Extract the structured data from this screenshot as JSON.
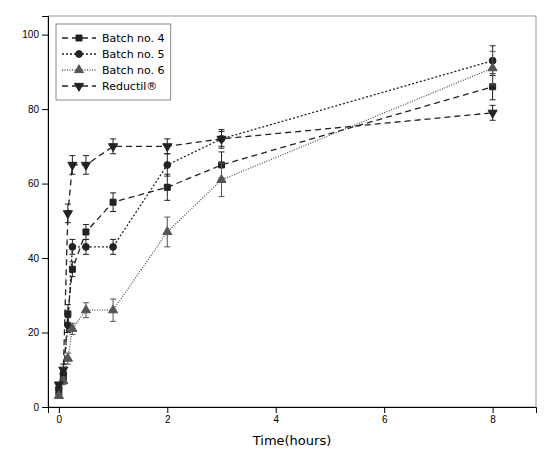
{
  "chart_data": {
    "type": "line",
    "xlabel": "Time(hours)",
    "x": [
      0.0,
      0.083,
      0.167,
      0.25,
      0.5,
      1.0,
      2.0,
      3.0,
      8.0
    ],
    "series": [
      {
        "name": "Batch no. 4",
        "color": "#222222",
        "marker": "square",
        "line_style": "dashed",
        "values": [
          4,
          8,
          25,
          37,
          47,
          55,
          59,
          65,
          86
        ],
        "errors": [
          0.5,
          1.0,
          2.5,
          2.0,
          2.0,
          2.5,
          3.5,
          3.5,
          3.5
        ]
      },
      {
        "name": "Batch no. 5",
        "color": "#222222",
        "marker": "circle",
        "line_style": "dotted",
        "values": [
          5,
          9,
          22,
          43,
          43,
          43,
          65,
          72,
          93
        ],
        "errors": [
          0.5,
          1.0,
          2.0,
          2.0,
          2.0,
          2.0,
          3.0,
          2.5,
          4.0
        ]
      },
      {
        "name": "Batch no. 6",
        "color": "#555555",
        "marker": "triangle-up",
        "line_style": "densely-dotted",
        "values": [
          3,
          7,
          13,
          21,
          26,
          26,
          47,
          61,
          91
        ],
        "errors": [
          0.5,
          1.0,
          1.5,
          1.5,
          2.0,
          3.0,
          4.0,
          4.5,
          4.5
        ]
      },
      {
        "name": "Reductil®",
        "color": "#222222",
        "marker": "triangle-down",
        "line_style": "dashed",
        "values": [
          6,
          10,
          52,
          65,
          65,
          70,
          70,
          72,
          79
        ],
        "errors": [
          0.5,
          1.5,
          2.5,
          2.5,
          2.5,
          2.0,
          2.0,
          2.0,
          2.0
        ]
      }
    ],
    "xlim": [
      -0.2,
      8.8
    ],
    "ylim": [
      0,
      105
    ],
    "xticks": [
      0,
      2,
      4,
      6,
      8
    ],
    "yticks": [
      0,
      20,
      40,
      60,
      80,
      100
    ],
    "legend": "upper left",
    "grid": false
  }
}
